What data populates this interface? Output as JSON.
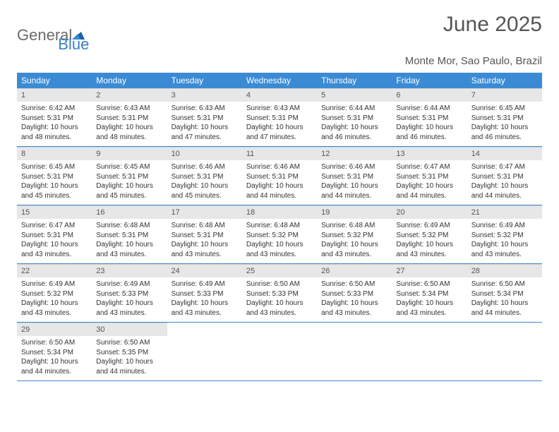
{
  "logo": {
    "word1": "General",
    "word2": "Blue"
  },
  "title": "June 2025",
  "subtitle": "Monte Mor, Sao Paulo, Brazil",
  "colors": {
    "header_bg": "#3b8bd4",
    "header_text": "#ffffff",
    "daynum_bg": "#e7e7e7",
    "rule": "#3b8bd4",
    "title_color": "#555555",
    "logo_gray": "#6b6b6b",
    "logo_blue": "#3b7fc4"
  },
  "day_headers": [
    "Sunday",
    "Monday",
    "Tuesday",
    "Wednesday",
    "Thursday",
    "Friday",
    "Saturday"
  ],
  "weeks": [
    [
      {
        "n": "1",
        "sr": "6:42 AM",
        "ss": "5:31 PM",
        "dl": "10 hours and 48 minutes."
      },
      {
        "n": "2",
        "sr": "6:43 AM",
        "ss": "5:31 PM",
        "dl": "10 hours and 48 minutes."
      },
      {
        "n": "3",
        "sr": "6:43 AM",
        "ss": "5:31 PM",
        "dl": "10 hours and 47 minutes."
      },
      {
        "n": "4",
        "sr": "6:43 AM",
        "ss": "5:31 PM",
        "dl": "10 hours and 47 minutes."
      },
      {
        "n": "5",
        "sr": "6:44 AM",
        "ss": "5:31 PM",
        "dl": "10 hours and 46 minutes."
      },
      {
        "n": "6",
        "sr": "6:44 AM",
        "ss": "5:31 PM",
        "dl": "10 hours and 46 minutes."
      },
      {
        "n": "7",
        "sr": "6:45 AM",
        "ss": "5:31 PM",
        "dl": "10 hours and 46 minutes."
      }
    ],
    [
      {
        "n": "8",
        "sr": "6:45 AM",
        "ss": "5:31 PM",
        "dl": "10 hours and 45 minutes."
      },
      {
        "n": "9",
        "sr": "6:45 AM",
        "ss": "5:31 PM",
        "dl": "10 hours and 45 minutes."
      },
      {
        "n": "10",
        "sr": "6:46 AM",
        "ss": "5:31 PM",
        "dl": "10 hours and 45 minutes."
      },
      {
        "n": "11",
        "sr": "6:46 AM",
        "ss": "5:31 PM",
        "dl": "10 hours and 44 minutes."
      },
      {
        "n": "12",
        "sr": "6:46 AM",
        "ss": "5:31 PM",
        "dl": "10 hours and 44 minutes."
      },
      {
        "n": "13",
        "sr": "6:47 AM",
        "ss": "5:31 PM",
        "dl": "10 hours and 44 minutes."
      },
      {
        "n": "14",
        "sr": "6:47 AM",
        "ss": "5:31 PM",
        "dl": "10 hours and 44 minutes."
      }
    ],
    [
      {
        "n": "15",
        "sr": "6:47 AM",
        "ss": "5:31 PM",
        "dl": "10 hours and 43 minutes."
      },
      {
        "n": "16",
        "sr": "6:48 AM",
        "ss": "5:31 PM",
        "dl": "10 hours and 43 minutes."
      },
      {
        "n": "17",
        "sr": "6:48 AM",
        "ss": "5:31 PM",
        "dl": "10 hours and 43 minutes."
      },
      {
        "n": "18",
        "sr": "6:48 AM",
        "ss": "5:32 PM",
        "dl": "10 hours and 43 minutes."
      },
      {
        "n": "19",
        "sr": "6:48 AM",
        "ss": "5:32 PM",
        "dl": "10 hours and 43 minutes."
      },
      {
        "n": "20",
        "sr": "6:49 AM",
        "ss": "5:32 PM",
        "dl": "10 hours and 43 minutes."
      },
      {
        "n": "21",
        "sr": "6:49 AM",
        "ss": "5:32 PM",
        "dl": "10 hours and 43 minutes."
      }
    ],
    [
      {
        "n": "22",
        "sr": "6:49 AM",
        "ss": "5:32 PM",
        "dl": "10 hours and 43 minutes."
      },
      {
        "n": "23",
        "sr": "6:49 AM",
        "ss": "5:33 PM",
        "dl": "10 hours and 43 minutes."
      },
      {
        "n": "24",
        "sr": "6:49 AM",
        "ss": "5:33 PM",
        "dl": "10 hours and 43 minutes."
      },
      {
        "n": "25",
        "sr": "6:50 AM",
        "ss": "5:33 PM",
        "dl": "10 hours and 43 minutes."
      },
      {
        "n": "26",
        "sr": "6:50 AM",
        "ss": "5:33 PM",
        "dl": "10 hours and 43 minutes."
      },
      {
        "n": "27",
        "sr": "6:50 AM",
        "ss": "5:34 PM",
        "dl": "10 hours and 43 minutes."
      },
      {
        "n": "28",
        "sr": "6:50 AM",
        "ss": "5:34 PM",
        "dl": "10 hours and 44 minutes."
      }
    ],
    [
      {
        "n": "29",
        "sr": "6:50 AM",
        "ss": "5:34 PM",
        "dl": "10 hours and 44 minutes."
      },
      {
        "n": "30",
        "sr": "6:50 AM",
        "ss": "5:35 PM",
        "dl": "10 hours and 44 minutes."
      },
      null,
      null,
      null,
      null,
      null
    ]
  ],
  "labels": {
    "sunrise": "Sunrise:",
    "sunset": "Sunset:",
    "daylight": "Daylight:"
  }
}
